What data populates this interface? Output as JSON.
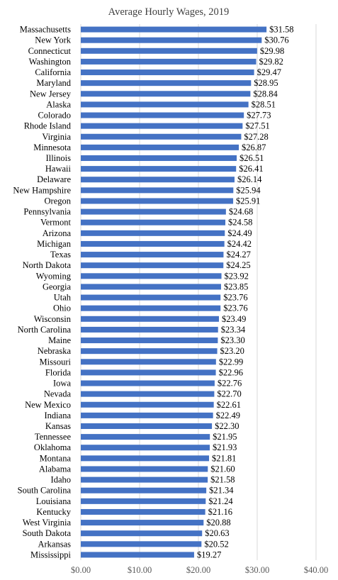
{
  "chart_data": {
    "type": "bar",
    "orientation": "horizontal",
    "title": "Average Hourly Wages, 2019",
    "xlabel": "",
    "ylabel": "",
    "xlim": [
      0,
      40
    ],
    "x_ticks": [
      0,
      10,
      20,
      30,
      40
    ],
    "x_tick_labels": [
      "$0.00",
      "$10.00",
      "$20.00",
      "$30.00",
      "$40.00"
    ],
    "grid": "vertical",
    "color": "#4472c4",
    "categories": [
      "Massachusetts",
      "New York",
      "Connecticut",
      "Washington",
      "California",
      "Maryland",
      "New Jersey",
      "Alaska",
      "Colorado",
      "Rhode Island",
      "Virginia",
      "Minnesota",
      "Illinois",
      "Hawaii",
      "Delaware",
      "New Hampshire",
      "Oregon",
      "Pennsylvania",
      "Vermont",
      "Arizona",
      "Michigan",
      "Texas",
      "North Dakota",
      "Wyoming",
      "Georgia",
      "Utah",
      "Ohio",
      "Wisconsin",
      "North Carolina",
      "Maine",
      "Nebraska",
      "Missouri",
      "Florida",
      "Iowa",
      "Nevada",
      "New Mexico",
      "Indiana",
      "Kansas",
      "Tennessee",
      "Oklahoma",
      "Montana",
      "Alabama",
      "Idaho",
      "South Carolina",
      "Louisiana",
      "Kentucky",
      "West Virginia",
      "South Dakota",
      "Arkansas",
      "Mississippi"
    ],
    "values": [
      31.58,
      30.76,
      29.98,
      29.82,
      29.47,
      28.95,
      28.84,
      28.51,
      27.73,
      27.51,
      27.28,
      26.87,
      26.51,
      26.41,
      26.14,
      25.94,
      25.91,
      24.68,
      24.58,
      24.49,
      24.42,
      24.27,
      24.25,
      23.92,
      23.85,
      23.76,
      23.76,
      23.49,
      23.34,
      23.3,
      23.2,
      22.99,
      22.96,
      22.76,
      22.7,
      22.61,
      22.49,
      22.3,
      21.95,
      21.93,
      21.81,
      21.6,
      21.58,
      21.34,
      21.24,
      21.16,
      20.88,
      20.63,
      20.52,
      19.27
    ],
    "value_labels": [
      "$31.58",
      "$30.76",
      "$29.98",
      "$29.82",
      "$29.47",
      "$28.95",
      "$28.84",
      "$28.51",
      "$27.73",
      "$27.51",
      "$27.28",
      "$26.87",
      "$26.51",
      "$26.41",
      "$26.14",
      "$25.94",
      "$25.91",
      "$24.68",
      "$24.58",
      "$24.49",
      "$24.42",
      "$24.27",
      "$24.25",
      "$23.92",
      "$23.85",
      "$23.76",
      "$23.76",
      "$23.49",
      "$23.34",
      "$23.30",
      "$23.20",
      "$22.99",
      "$22.96",
      "$22.76",
      "$22.70",
      "$22.61",
      "$22.49",
      "$22.30",
      "$21.95",
      "$21.93",
      "$21.81",
      "$21.60",
      "$21.58",
      "$21.34",
      "$21.24",
      "$21.16",
      "$20.88",
      "$20.63",
      "$20.52",
      "$19.27"
    ]
  }
}
